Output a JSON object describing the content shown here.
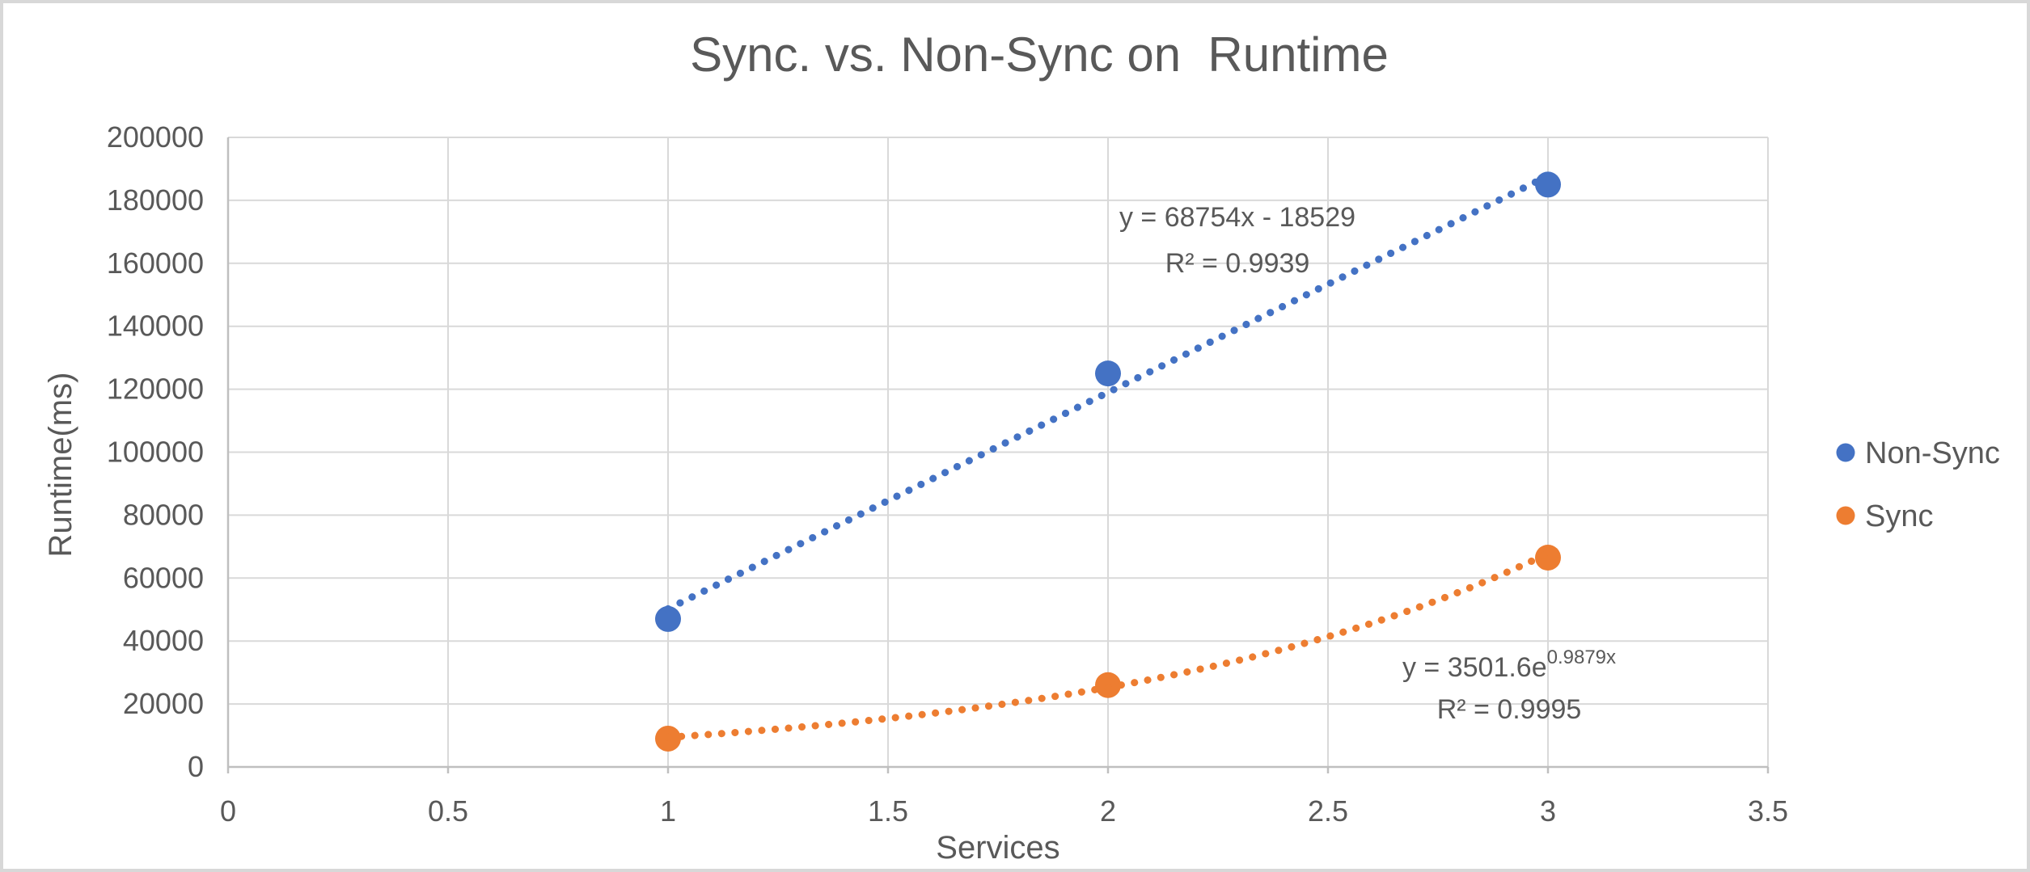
{
  "frame": {
    "background": "#ffffff",
    "border_color": "#d8d8d8"
  },
  "chart_data": {
    "type": "scatter",
    "title": "Sync. vs. Non-Sync on  Runtime",
    "xlabel": "Services",
    "ylabel": "Runtime(ms)",
    "xlim": [
      0,
      3.5
    ],
    "ylim": [
      0,
      200000
    ],
    "x_ticks": [
      0,
      0.5,
      1,
      1.5,
      2,
      2.5,
      3,
      3.5
    ],
    "x_tick_labels": [
      "0",
      "0.5",
      "1",
      "1.5",
      "2",
      "2.5",
      "3",
      "3.5"
    ],
    "y_ticks": [
      0,
      20000,
      40000,
      60000,
      80000,
      100000,
      120000,
      140000,
      160000,
      180000,
      200000
    ],
    "y_tick_labels": [
      "0",
      "20000",
      "40000",
      "60000",
      "80000",
      "100000",
      "120000",
      "140000",
      "160000",
      "180000",
      "200000"
    ],
    "grid": true,
    "legend_position": "right",
    "series": [
      {
        "name": "Non-Sync",
        "color": "#4472C4",
        "x": [
          1,
          2,
          3
        ],
        "y": [
          47000,
          125000,
          185000
        ],
        "trendline": {
          "kind": "linear",
          "slope": 68754,
          "intercept": -18529,
          "x_range": [
            1,
            3
          ],
          "equation_label": "y = 68754x - 18529",
          "r2_label": "R² = 0.9939"
        }
      },
      {
        "name": "Sync",
        "color": "#ED7D31",
        "x": [
          1,
          2,
          3
        ],
        "y": [
          9000,
          26000,
          66500
        ],
        "trendline": {
          "kind": "exponential",
          "coefficient": 3501.6,
          "exponent": 0.9879,
          "x_range": [
            1,
            3
          ],
          "equation_base": "y = 3501.6e",
          "equation_exponent": "0.9879x",
          "r2_label": "R² = 0.9995"
        }
      }
    ],
    "colors": {
      "text": "#595959",
      "gridline": "#D9D9D9",
      "axis_line": "#BFBFBF"
    }
  }
}
